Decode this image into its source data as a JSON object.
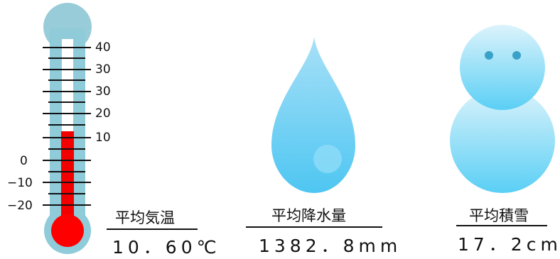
{
  "thermometer": {
    "scale_left": [
      "0",
      "−10",
      "−20"
    ],
    "scale_right": [
      "40",
      "30",
      "30",
      "20",
      "10"
    ],
    "title": "平均気温",
    "value": "10．60℃",
    "colors": {
      "tube": "#8fcbd8",
      "mercury": "#f20000",
      "bulb": "#ff0000",
      "top": "#99ccd9"
    }
  },
  "rain": {
    "title": "平均降水量",
    "value": "1382．8mm",
    "colors": {
      "drop_top": "#a8e0f7",
      "drop_bottom": "#4ec6f2",
      "highlight": "#8fdcf7"
    }
  },
  "snow": {
    "title": "平均積雪",
    "value": "17．2cm",
    "colors": {
      "body_top": "#dcf3fb",
      "body_bottom": "#5acff5",
      "eyes": "#3aa2c9"
    }
  }
}
